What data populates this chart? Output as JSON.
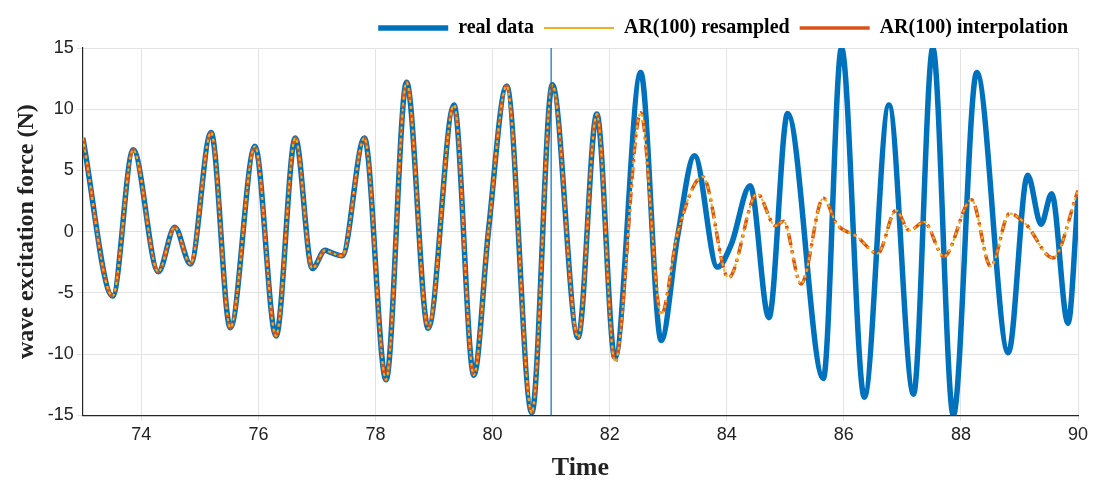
{
  "chart_data": {
    "type": "line",
    "xlabel": "Time",
    "ylabel": "wave excitation force (N)",
    "xlim": [
      73,
      90
    ],
    "xticks": [
      74,
      76,
      78,
      80,
      82,
      84,
      86,
      88,
      90
    ],
    "ylim": [
      -15,
      15
    ],
    "yticks": [
      -15,
      -10,
      -5,
      0,
      5,
      10,
      15
    ],
    "grid": true,
    "legend": "top right",
    "marker": "none",
    "ref_lines": [
      {
        "axis": "x",
        "value": 81,
        "color": "#0072bd",
        "line_style": "solid"
      }
    ],
    "series": [
      {
        "name": "real data",
        "color": "#0072bd",
        "line_style": "solid",
        "x": [
          73.0,
          73.51,
          73.86,
          74.29,
          74.57,
          74.84,
          75.19,
          75.52,
          75.94,
          76.3,
          76.63,
          76.92,
          77.14,
          77.21,
          77.43,
          77.81,
          78.18,
          78.53,
          78.9,
          79.34,
          79.68,
          79.93,
          80.24,
          80.67,
          81.02,
          81.46,
          81.78,
          82.09,
          82.53,
          82.88,
          83.16,
          83.45,
          83.84,
          84.08,
          84.4,
          84.72,
          85.04,
          85.65,
          85.96,
          86.35,
          86.77,
          87.19,
          87.52,
          87.87,
          88.27,
          88.81,
          89.14,
          89.37,
          89.55,
          89.83,
          90.0
        ],
        "values": [
          7.65,
          -5.27,
          6.68,
          -3.28,
          0.35,
          -2.65,
          8.1,
          -7.85,
          6.98,
          -8.53,
          7.65,
          -3.02,
          -1.52,
          -1.65,
          -1.98,
          7.65,
          -12.1,
          12.2,
          -7.9,
          10.35,
          -11.73,
          0.1,
          11.9,
          -14.8,
          12.0,
          -8.65,
          9.6,
          -10.3,
          13,
          -8.9,
          -0.4,
          6.2,
          -2.9,
          -1.0,
          3.75,
          -7.03,
          9.65,
          -12.0,
          15,
          -13.53,
          10.35,
          -13.28,
          15,
          -15,
          13,
          -9.9,
          4.6,
          0.6,
          3.1,
          -7.5,
          2.85
        ]
      },
      {
        "name": "AR(100) resampled",
        "color": "#edb120",
        "line_style": "dotted",
        "x": [
          73.0,
          73.51,
          73.86,
          74.29,
          74.57,
          74.84,
          75.19,
          75.52,
          75.94,
          76.3,
          76.63,
          76.92,
          77.14,
          77.21,
          77.43,
          77.81,
          78.18,
          78.53,
          78.9,
          79.34,
          79.68,
          79.93,
          80.24,
          80.67,
          81.02,
          81.46,
          81.78,
          82.09,
          82.53,
          82.88,
          83.16,
          83.59,
          84.03,
          84.52,
          84.83,
          84.97,
          85.27,
          85.65,
          85.88,
          86.22,
          86.58,
          86.89,
          87.12,
          87.37,
          87.71,
          88.18,
          88.51,
          88.83,
          89.11,
          89.57,
          90.0
        ],
        "values": [
          7.65,
          -5.27,
          6.68,
          -3.28,
          0.35,
          -2.65,
          8.1,
          -7.85,
          6.98,
          -8.53,
          7.65,
          -3.02,
          -1.52,
          -1.65,
          -1.98,
          7.65,
          -12.1,
          12.2,
          -7.9,
          10.35,
          -11.73,
          0.1,
          11.9,
          -14.8,
          12.0,
          -8.65,
          9.6,
          -10.65,
          9.7,
          -6.8,
          -0.15,
          4.48,
          -3.77,
          3.1,
          0.48,
          0.85,
          -4.28,
          2.73,
          0.6,
          -0.4,
          -1.78,
          1.73,
          0.1,
          0.78,
          -2.03,
          2.6,
          -2.85,
          1.48,
          0.6,
          -2.15,
          3.35
        ]
      },
      {
        "name": "AR(100) interpolation",
        "color": "#d95319",
        "line_style": "dashed",
        "x": [
          73.0,
          73.51,
          73.86,
          74.29,
          74.57,
          74.84,
          75.19,
          75.52,
          75.94,
          76.3,
          76.63,
          76.92,
          77.14,
          77.21,
          77.43,
          77.81,
          78.18,
          78.53,
          78.9,
          79.34,
          79.68,
          79.93,
          80.24,
          80.67,
          81.02,
          81.46,
          81.78,
          82.09,
          82.53,
          82.88,
          83.16,
          83.59,
          84.03,
          84.52,
          84.83,
          84.97,
          85.27,
          85.65,
          85.88,
          86.22,
          86.58,
          86.89,
          87.12,
          87.37,
          87.71,
          88.18,
          88.51,
          88.83,
          89.11,
          89.57,
          90.0
        ],
        "values": [
          7.65,
          -5.27,
          6.68,
          -3.28,
          0.35,
          -2.65,
          8.1,
          -7.85,
          6.98,
          -8.53,
          7.65,
          -3.02,
          -1.52,
          -1.65,
          -1.98,
          7.65,
          -12.1,
          12.2,
          -7.9,
          10.35,
          -11.73,
          0.1,
          11.9,
          -14.8,
          12.0,
          -8.65,
          9.6,
          -10.65,
          9.7,
          -6.8,
          -0.15,
          4.48,
          -3.77,
          3.1,
          0.48,
          0.85,
          -4.28,
          2.73,
          0.6,
          -0.4,
          -1.78,
          1.73,
          0.1,
          0.78,
          -2.03,
          2.6,
          -2.85,
          1.48,
          0.6,
          -2.15,
          3.35
        ]
      }
    ]
  }
}
